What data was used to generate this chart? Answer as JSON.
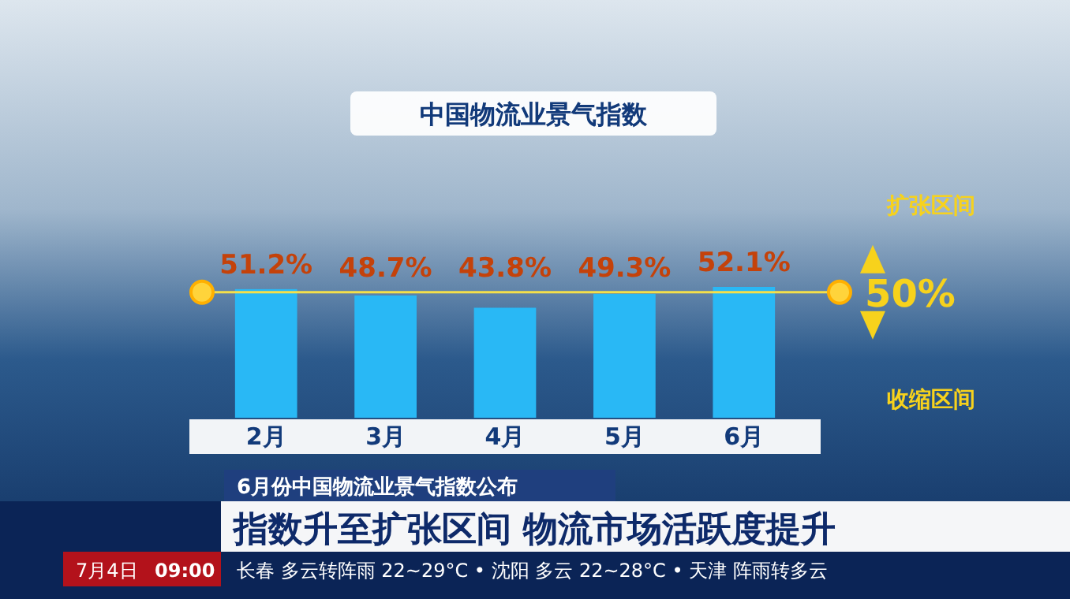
{
  "chart_data": {
    "type": "bar",
    "title": "中国物流业景气指数",
    "subtitle": "6月份中国物流业景气指数公布",
    "categories": [
      "2月",
      "3月",
      "4月",
      "5月",
      "6月"
    ],
    "values": [
      51.2,
      48.7,
      43.8,
      49.3,
      52.1
    ],
    "value_labels": [
      "51.2%",
      "48.7%",
      "43.8%",
      "49.3%",
      "52.1%"
    ],
    "color": "#29b8f5",
    "tick_labels": "x",
    "ref_lines": [
      {
        "axis": "y",
        "value": 50,
        "label": "50%",
        "color": "#f5e04a"
      }
    ],
    "annotations": [
      "扩张区间",
      "收缩区间",
      "指数升至扩张区间 物流市场活跃度提升",
      "7月4日",
      "09:00",
      "长春 多云转阵雨 22~29°C • 沈阳 多云 22~28°C • 天津 阵雨转多云"
    ]
  }
}
